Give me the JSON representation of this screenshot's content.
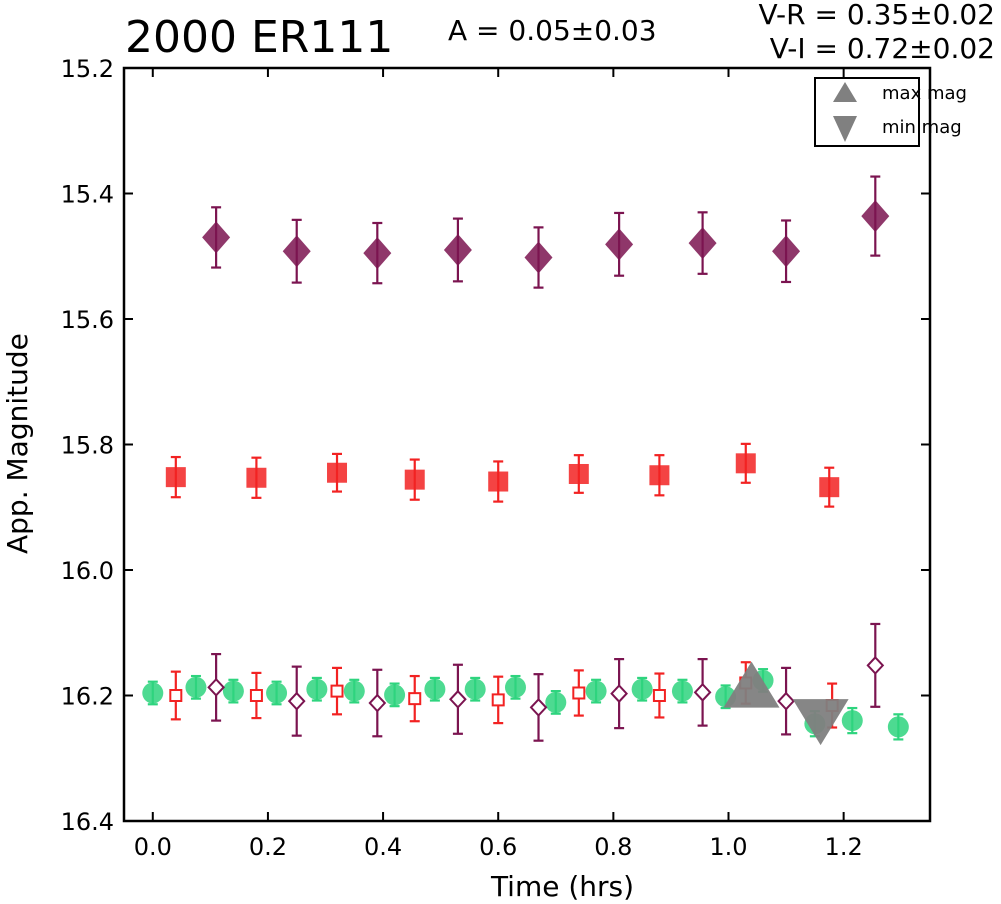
{
  "header": {
    "title": "2000 ER111",
    "amplitude": "A  = 0.05±0.03",
    "vr": "V-R = 0.35±0.02",
    "vi": "V-I  = 0.72±0.02"
  },
  "colors": {
    "I": "#7b1450",
    "R": "#f22222",
    "V": "#2ed47e",
    "marker": "#808080"
  },
  "chart_data": {
    "type": "scatter",
    "title": "2000 ER111",
    "xlabel": "Time (hrs)",
    "ylabel": "App. Magnitude",
    "xlim": [
      -0.05,
      1.35
    ],
    "ylim": [
      16.4,
      15.2
    ],
    "y_inverted": true,
    "xticks": [
      "0.0",
      "0.2",
      "0.4",
      "0.6",
      "0.8",
      "1.0",
      "1.2"
    ],
    "yticks": [
      "15.2",
      "15.4",
      "15.6",
      "15.8",
      "16.0",
      "16.2",
      "16.4"
    ],
    "grid": false,
    "legend": {
      "position": "top-right",
      "entries": [
        {
          "label": "max mag",
          "marker": "triangle-up"
        },
        {
          "label": "min mag",
          "marker": "triangle-down"
        }
      ]
    },
    "series": [
      {
        "marker": "diamond",
        "filled": true,
        "color": "#7b1450",
        "points": [
          [
            0.11,
            15.47,
            0.048
          ],
          [
            0.25,
            15.492,
            0.05
          ],
          [
            0.39,
            15.495,
            0.048
          ],
          [
            0.53,
            15.49,
            0.05
          ],
          [
            0.67,
            15.502,
            0.048
          ],
          [
            0.81,
            15.481,
            0.05
          ],
          [
            0.955,
            15.479,
            0.049
          ],
          [
            1.1,
            15.492,
            0.049
          ],
          [
            1.255,
            15.436,
            0.063
          ]
        ]
      },
      {
        "marker": "square",
        "filled": true,
        "color": "#f22222",
        "points": [
          [
            0.04,
            15.852,
            0.032
          ],
          [
            0.18,
            15.853,
            0.032
          ],
          [
            0.32,
            15.845,
            0.03
          ],
          [
            0.455,
            15.856,
            0.032
          ],
          [
            0.6,
            15.859,
            0.032
          ],
          [
            0.74,
            15.847,
            0.03
          ],
          [
            0.88,
            15.849,
            0.032
          ],
          [
            1.03,
            15.83,
            0.031
          ],
          [
            1.175,
            15.868,
            0.031
          ]
        ]
      },
      {
        "marker": "circle",
        "filled": true,
        "color": "#2ed47e",
        "points": [
          [
            0.0,
            16.196,
            0.018
          ],
          [
            0.075,
            16.187,
            0.018
          ],
          [
            0.14,
            16.193,
            0.018
          ],
          [
            0.215,
            16.196,
            0.018
          ],
          [
            0.285,
            16.19,
            0.018
          ],
          [
            0.35,
            16.193,
            0.018
          ],
          [
            0.42,
            16.199,
            0.018
          ],
          [
            0.49,
            16.19,
            0.018
          ],
          [
            0.56,
            16.19,
            0.018
          ],
          [
            0.63,
            16.187,
            0.018
          ],
          [
            0.7,
            16.211,
            0.018
          ],
          [
            0.77,
            16.193,
            0.018
          ],
          [
            0.85,
            16.19,
            0.018
          ],
          [
            0.92,
            16.193,
            0.018
          ],
          [
            0.995,
            16.202,
            0.018
          ],
          [
            1.06,
            16.176,
            0.018
          ],
          [
            1.15,
            16.245,
            0.02
          ],
          [
            1.215,
            16.24,
            0.02
          ],
          [
            1.295,
            16.25,
            0.02
          ]
        ]
      },
      {
        "marker": "square",
        "filled": false,
        "color": "#f22222",
        "points": [
          [
            0.04,
            16.2,
            0.038
          ],
          [
            0.18,
            16.2,
            0.036
          ],
          [
            0.32,
            16.193,
            0.037
          ],
          [
            0.455,
            16.205,
            0.036
          ],
          [
            0.6,
            16.207,
            0.037
          ],
          [
            0.74,
            16.196,
            0.036
          ],
          [
            0.88,
            16.2,
            0.035
          ],
          [
            1.03,
            16.18,
            0.033
          ],
          [
            1.18,
            16.216,
            0.035
          ]
        ]
      },
      {
        "marker": "diamond",
        "filled": false,
        "color": "#7b1450",
        "points": [
          [
            0.11,
            16.187,
            0.053
          ],
          [
            0.25,
            16.209,
            0.055
          ],
          [
            0.39,
            16.212,
            0.053
          ],
          [
            0.53,
            16.206,
            0.055
          ],
          [
            0.67,
            16.219,
            0.053
          ],
          [
            0.81,
            16.197,
            0.055
          ],
          [
            0.955,
            16.195,
            0.053
          ],
          [
            1.1,
            16.209,
            0.053
          ],
          [
            1.255,
            16.152,
            0.066
          ]
        ]
      }
    ],
    "annotations": [
      {
        "marker": "triangle-up",
        "x": 1.04,
        "y": 16.19,
        "meaning": "max mag"
      },
      {
        "marker": "triangle-down",
        "x": 1.16,
        "y": 16.235,
        "meaning": "min mag"
      }
    ]
  }
}
